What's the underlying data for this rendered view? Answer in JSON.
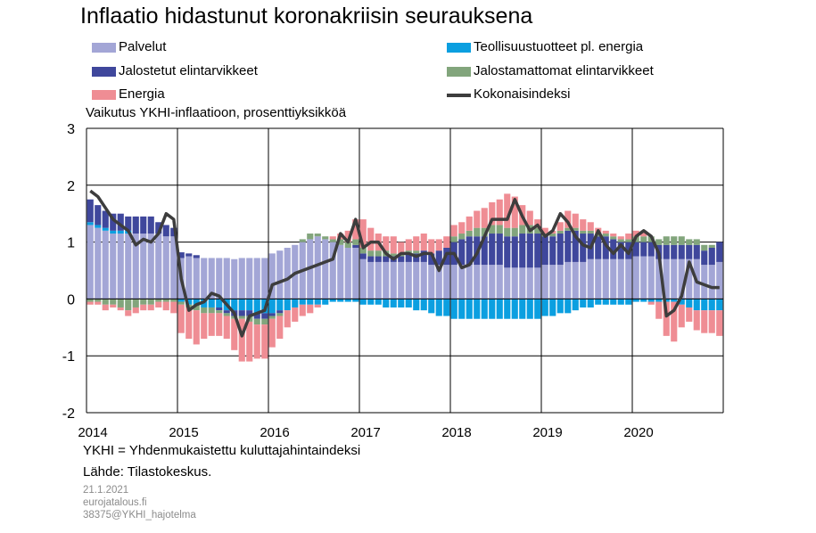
{
  "colors": {
    "palvelut": "#a3a6d6",
    "teollisuus": "#0b9fe0",
    "jalostetut": "#3f479c",
    "jalostamattomat": "#82a57c",
    "energia": "#ef8d94",
    "kokonais": "#3d3d3d"
  },
  "title": "Inflaatio hidastunut koronakriisin seurauksena",
  "legend": {
    "palvelut": "Palvelut",
    "teollisuus": "Teollisuustuotteet pl. energia",
    "jalostetut": "Jalostetut elintarvikkeet",
    "jalostamattomat": "Jalostamattomat elintarvikkeet",
    "energia": "Energia",
    "kokonais": "Kokonaisindeksi"
  },
  "subtitle": "Vaikutus YKHI-inflaatioon, prosenttiyksikköä",
  "notes": {
    "definition": "YKHI = Yhdenmukaistettu kuluttajahintaindeksi",
    "source": "Lähde: Tilastokeskus.",
    "date": "21.1.2021",
    "site": "eurojatalous.fi",
    "code": "38375@YKHI_hajotelma"
  },
  "chart_data": {
    "type": "bar",
    "stacked": true,
    "frequency": "monthly",
    "start": "2014-01",
    "end": "2020-12",
    "ylabel": "Vaikutus YKHI-inflaatioon, prosenttiyksikköä",
    "ylim": [
      -2,
      3
    ],
    "yticks": [
      -2,
      -1,
      0,
      1,
      2,
      3
    ],
    "xticks": [
      "2014",
      "2015",
      "2016",
      "2017",
      "2018",
      "2019",
      "2020"
    ],
    "grid": true,
    "legend_position": "top",
    "series": [
      {
        "name": "Palvelut",
        "key": "palvelut",
        "values": [
          1.3,
          1.25,
          1.2,
          1.15,
          1.15,
          1.15,
          1.15,
          1.15,
          1.15,
          1.15,
          1.1,
          1.1,
          0.72,
          0.75,
          0.72,
          0.72,
          0.72,
          0.72,
          0.72,
          0.7,
          0.72,
          0.72,
          0.72,
          0.72,
          0.8,
          0.85,
          0.9,
          0.95,
          1.0,
          1.05,
          1.1,
          1.05,
          1.0,
          0.95,
          0.9,
          0.9,
          0.7,
          0.65,
          0.65,
          0.65,
          0.65,
          0.65,
          0.65,
          0.65,
          0.65,
          0.6,
          0.6,
          0.6,
          0.6,
          0.6,
          0.6,
          0.6,
          0.6,
          0.6,
          0.6,
          0.55,
          0.55,
          0.55,
          0.55,
          0.55,
          0.6,
          0.6,
          0.6,
          0.65,
          0.65,
          0.65,
          0.7,
          0.7,
          0.7,
          0.7,
          0.7,
          0.7,
          0.75,
          0.75,
          0.75,
          0.7,
          0.7,
          0.7,
          0.7,
          0.7,
          0.7,
          0.6,
          0.6,
          0.65
        ]
      },
      {
        "name": "Teollisuustuotteet pl. energia",
        "key": "teollisuus",
        "values": [
          0.05,
          0.05,
          0.05,
          0.05,
          0.05,
          0.05,
          0.0,
          0.0,
          0.0,
          0.0,
          0.0,
          0.0,
          -0.05,
          -0.1,
          -0.1,
          -0.15,
          -0.15,
          -0.15,
          -0.2,
          -0.2,
          -0.2,
          -0.2,
          -0.25,
          -0.25,
          -0.25,
          -0.2,
          -0.2,
          -0.15,
          -0.1,
          -0.1,
          -0.1,
          -0.1,
          -0.05,
          -0.05,
          -0.05,
          -0.05,
          -0.1,
          -0.1,
          -0.1,
          -0.15,
          -0.15,
          -0.15,
          -0.15,
          -0.2,
          -0.2,
          -0.25,
          -0.3,
          -0.3,
          -0.35,
          -0.35,
          -0.35,
          -0.35,
          -0.35,
          -0.35,
          -0.35,
          -0.35,
          -0.35,
          -0.35,
          -0.35,
          -0.35,
          -0.3,
          -0.3,
          -0.25,
          -0.25,
          -0.2,
          -0.15,
          -0.15,
          -0.1,
          -0.1,
          -0.1,
          -0.1,
          -0.1,
          -0.05,
          -0.05,
          -0.05,
          -0.05,
          -0.05,
          -0.05,
          -0.1,
          -0.15,
          -0.2,
          -0.2,
          -0.2,
          -0.2
        ]
      },
      {
        "name": "Jalostetut elintarvikkeet",
        "key": "jalostetut",
        "values": [
          0.4,
          0.35,
          0.3,
          0.3,
          0.3,
          0.25,
          0.3,
          0.3,
          0.3,
          0.2,
          0.2,
          0.15,
          0.1,
          0.05,
          0.05,
          0.0,
          0.0,
          -0.05,
          -0.05,
          -0.1,
          -0.1,
          -0.1,
          -0.1,
          -0.1,
          -0.05,
          -0.05,
          0.0,
          0.0,
          0.0,
          0.0,
          0.0,
          0.0,
          0.0,
          0.0,
          0.0,
          0.05,
          0.1,
          0.1,
          0.1,
          0.1,
          0.1,
          0.1,
          0.15,
          0.15,
          0.2,
          0.2,
          0.25,
          0.3,
          0.4,
          0.45,
          0.5,
          0.5,
          0.5,
          0.55,
          0.55,
          0.55,
          0.55,
          0.6,
          0.6,
          0.6,
          0.5,
          0.5,
          0.55,
          0.55,
          0.55,
          0.5,
          0.45,
          0.4,
          0.4,
          0.35,
          0.3,
          0.3,
          0.25,
          0.25,
          0.25,
          0.25,
          0.25,
          0.25,
          0.25,
          0.25,
          0.25,
          0.25,
          0.3,
          0.35
        ]
      },
      {
        "name": "Jalostamattomat elintarvikkeet",
        "key": "jalostamattomat",
        "values": [
          -0.05,
          -0.05,
          -0.1,
          -0.1,
          -0.15,
          -0.2,
          -0.15,
          -0.1,
          -0.1,
          -0.05,
          -0.05,
          -0.05,
          -0.05,
          -0.05,
          -0.1,
          -0.1,
          -0.1,
          -0.05,
          -0.05,
          -0.05,
          -0.05,
          -0.1,
          -0.1,
          -0.1,
          -0.05,
          -0.05,
          0.0,
          0.0,
          0.05,
          0.1,
          0.05,
          0.05,
          0.05,
          0.1,
          0.1,
          0.1,
          0.1,
          0.1,
          0.1,
          0.1,
          0.05,
          0.05,
          0.05,
          0.05,
          0.0,
          0.0,
          0.0,
          0.0,
          0.1,
          0.1,
          0.1,
          0.15,
          0.15,
          0.15,
          0.15,
          0.15,
          0.15,
          0.15,
          0.15,
          0.1,
          0.05,
          0.05,
          0.05,
          0.05,
          0.05,
          0.05,
          0.05,
          0.05,
          0.05,
          0.05,
          0.05,
          0.05,
          0.1,
          0.1,
          0.1,
          0.1,
          0.15,
          0.15,
          0.15,
          0.1,
          0.1,
          0.1,
          0.05,
          0.0
        ]
      },
      {
        "name": "Energia",
        "key": "energia",
        "values": [
          -0.05,
          -0.05,
          -0.1,
          -0.05,
          -0.05,
          -0.1,
          -0.1,
          -0.1,
          -0.1,
          -0.1,
          -0.15,
          -0.2,
          -0.5,
          -0.55,
          -0.6,
          -0.45,
          -0.4,
          -0.4,
          -0.4,
          -0.55,
          -0.75,
          -0.7,
          -0.6,
          -0.6,
          -0.5,
          -0.4,
          -0.3,
          -0.25,
          -0.2,
          -0.15,
          -0.05,
          0.0,
          0.05,
          0.1,
          0.2,
          0.35,
          0.5,
          0.4,
          0.3,
          0.25,
          0.3,
          0.2,
          0.2,
          0.25,
          0.3,
          0.25,
          0.2,
          0.2,
          0.2,
          0.2,
          0.25,
          0.3,
          0.35,
          0.4,
          0.45,
          0.6,
          0.55,
          0.35,
          0.25,
          0.15,
          0.1,
          0.05,
          0.15,
          0.3,
          0.25,
          0.2,
          0.15,
          0.1,
          0.05,
          0.05,
          0.05,
          0.1,
          0.1,
          0.1,
          -0.05,
          -0.3,
          -0.6,
          -0.7,
          -0.4,
          -0.25,
          -0.35,
          -0.4,
          -0.4,
          -0.45
        ]
      },
      {
        "name": "Kokonaisindeksi",
        "key": "kokonais",
        "kind": "line",
        "values": [
          1.9,
          1.8,
          1.6,
          1.4,
          1.3,
          1.2,
          0.95,
          1.05,
          1.0,
          1.15,
          1.5,
          1.4,
          0.35,
          -0.2,
          -0.1,
          -0.05,
          0.1,
          0.05,
          -0.1,
          -0.25,
          -0.65,
          -0.3,
          -0.25,
          -0.2,
          0.25,
          0.3,
          0.35,
          0.45,
          0.5,
          0.55,
          0.6,
          0.65,
          0.7,
          1.15,
          1.0,
          1.4,
          0.9,
          1.0,
          1.0,
          0.8,
          0.7,
          0.8,
          0.8,
          0.75,
          0.8,
          0.8,
          0.5,
          0.8,
          0.8,
          0.55,
          0.6,
          0.8,
          1.1,
          1.4,
          1.4,
          1.4,
          1.75,
          1.45,
          1.2,
          1.3,
          1.1,
          1.2,
          1.5,
          1.35,
          1.1,
          0.95,
          0.9,
          1.2,
          0.95,
          0.8,
          0.95,
          0.8,
          1.1,
          1.2,
          1.1,
          0.8,
          -0.3,
          -0.2,
          0.05,
          0.65,
          0.3,
          0.25,
          0.2,
          0.2
        ]
      }
    ]
  }
}
